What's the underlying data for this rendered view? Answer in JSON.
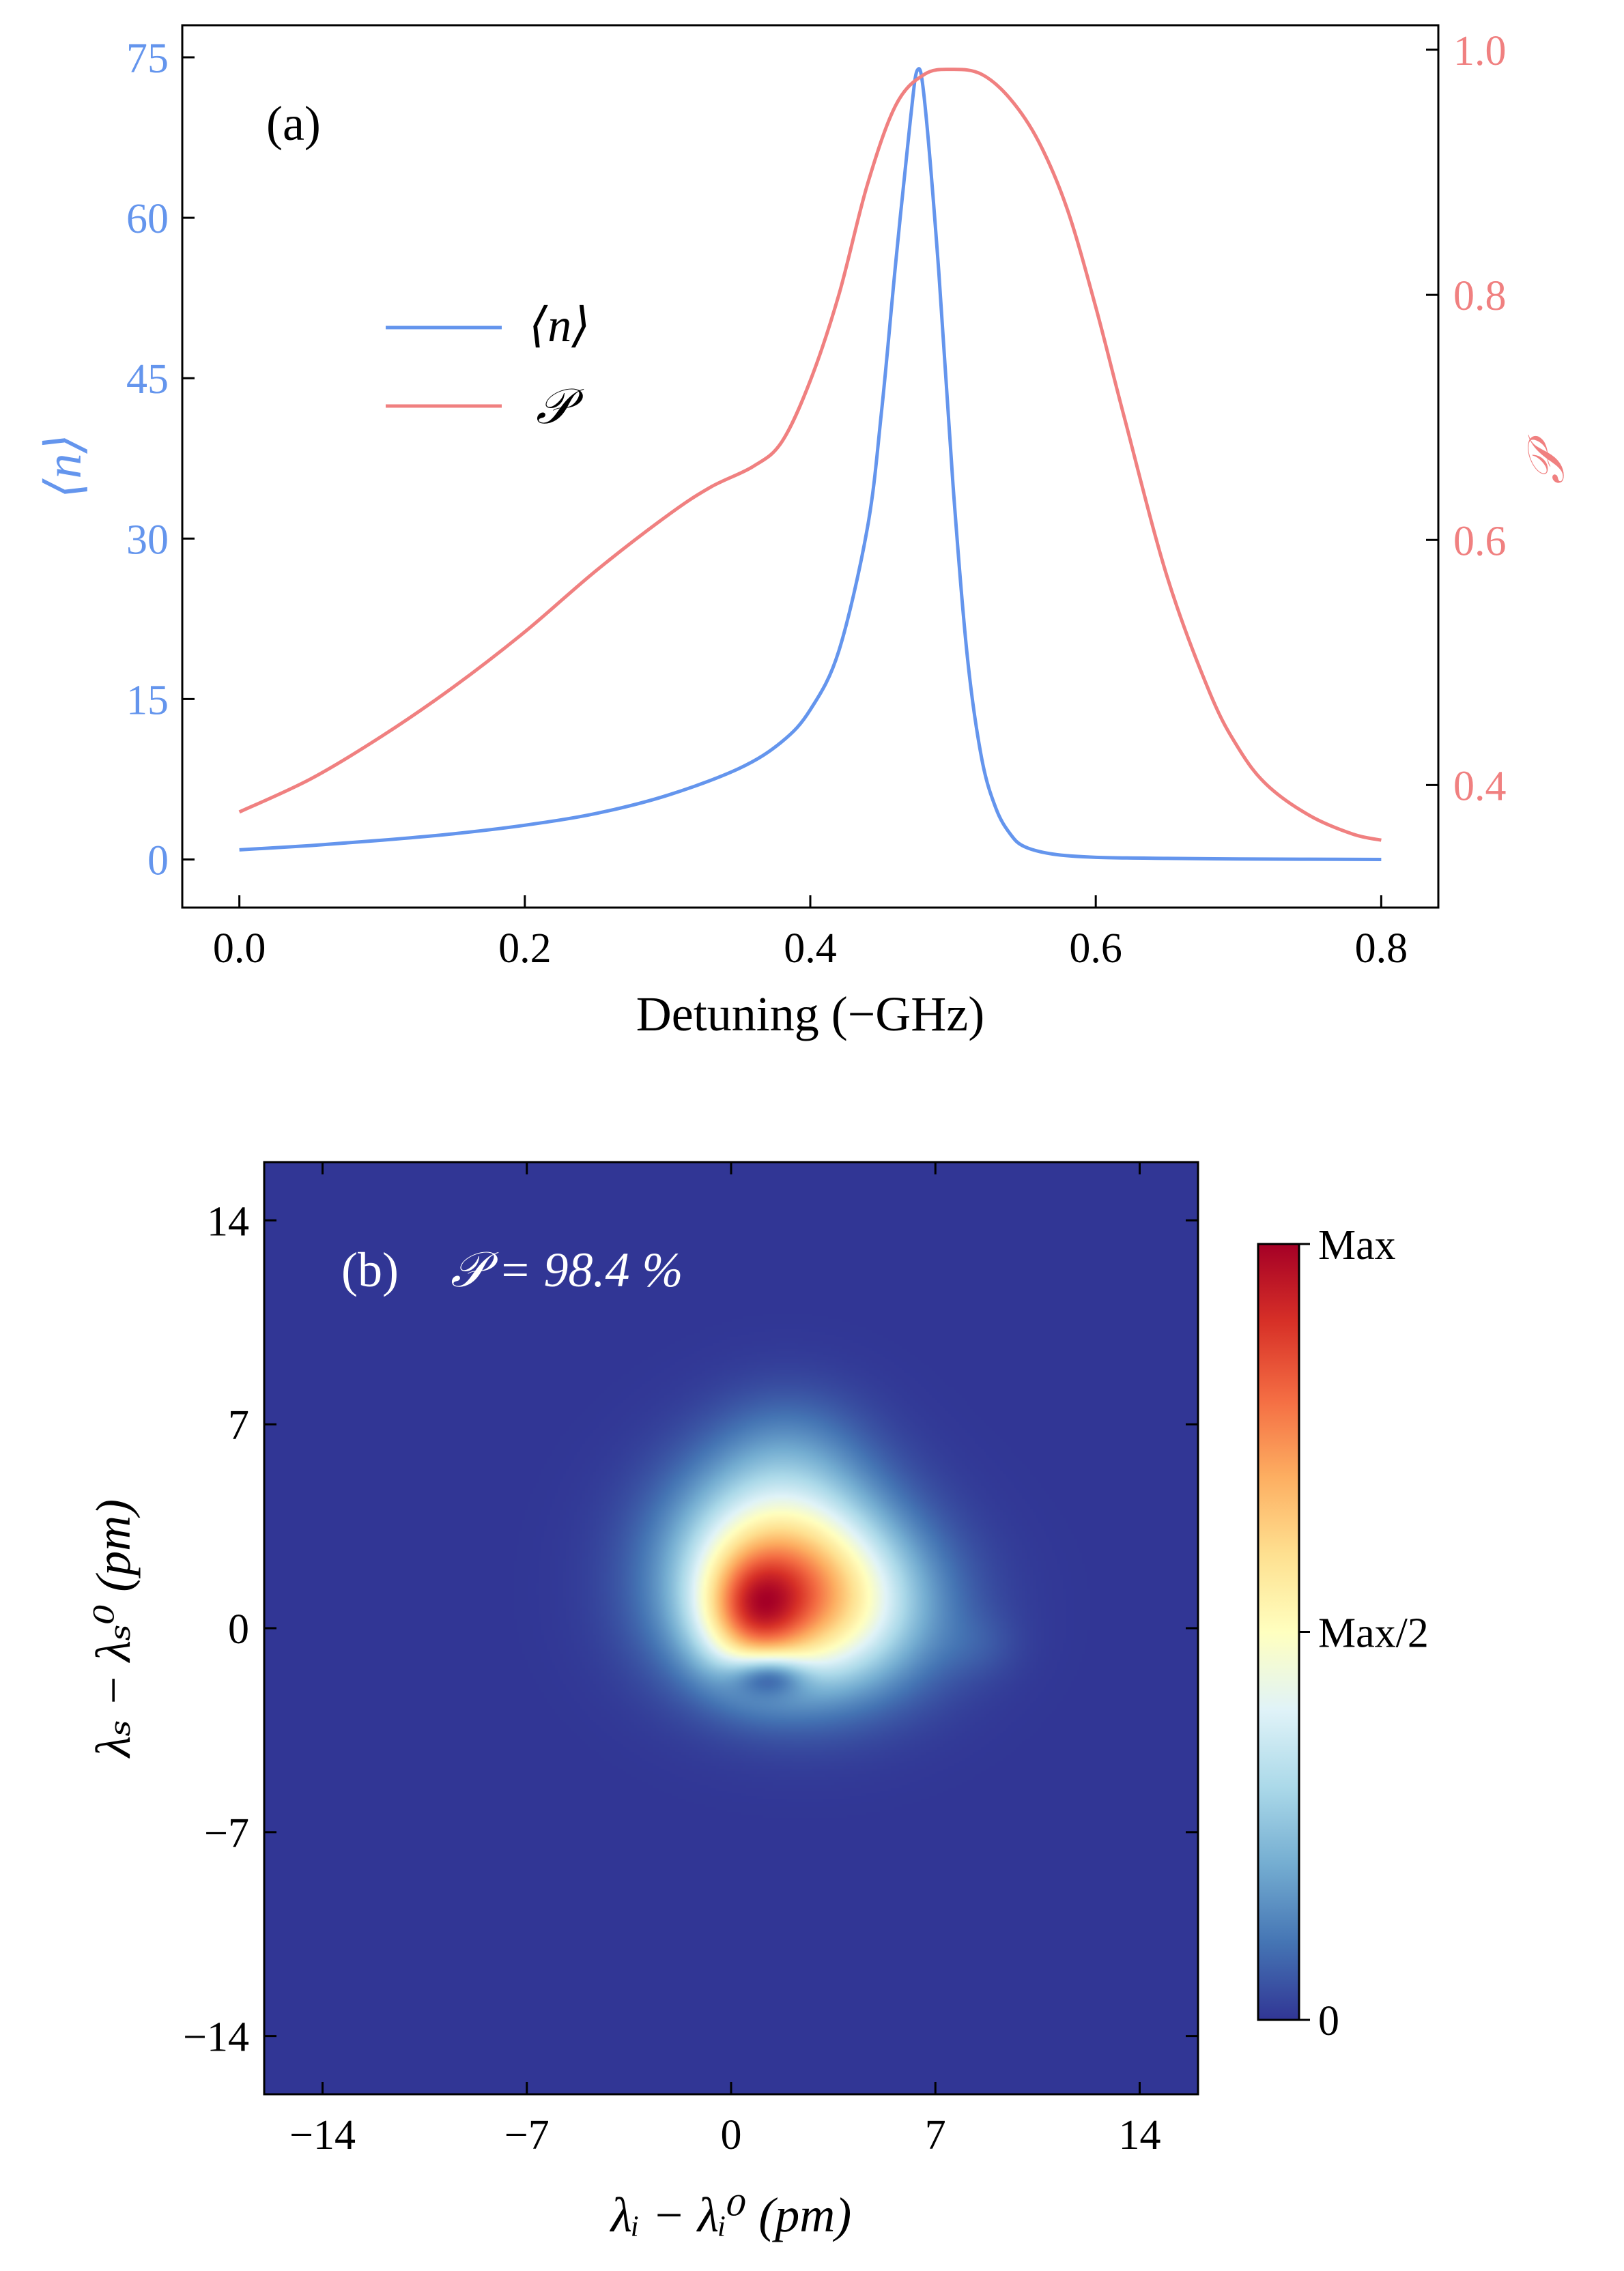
{
  "chart_data": [
    {
      "type": "line",
      "panel_label": "(a)",
      "xlabel": "Detuning (−GHz)",
      "ylabel_left": "⟨n⟩",
      "ylabel_right": "𝒫",
      "xlim": [
        -0.04,
        0.84
      ],
      "ylim_left": [
        -4.5,
        78
      ],
      "ylim_right": [
        0.3,
        1.02
      ],
      "xticks": [
        "0.0",
        "0.2",
        "0.4",
        "0.6",
        "0.8"
      ],
      "yticks_left": [
        "0",
        "15",
        "30",
        "45",
        "60",
        "75"
      ],
      "yticks_right": [
        "0.4",
        "0.6",
        "0.8",
        "1.0"
      ],
      "legend_position": "upper-left",
      "grid": false,
      "series": [
        {
          "name": "⟨n⟩",
          "axis": "left",
          "color": "#6495ED",
          "x": [
            0.0,
            0.05,
            0.1,
            0.15,
            0.2,
            0.25,
            0.3,
            0.35,
            0.38,
            0.4,
            0.42,
            0.44,
            0.45,
            0.46,
            0.47,
            0.475,
            0.48,
            0.49,
            0.5,
            0.51,
            0.52,
            0.53,
            0.54,
            0.55,
            0.57,
            0.6,
            0.65,
            0.7,
            0.75,
            0.8
          ],
          "y": [
            0.9,
            1.3,
            1.8,
            2.4,
            3.2,
            4.3,
            6.0,
            8.5,
            11.0,
            14.0,
            19.5,
            31.0,
            42.0,
            56.0,
            69.0,
            73.8,
            71.0,
            55.0,
            35.0,
            19.0,
            9.5,
            4.8,
            2.4,
            1.2,
            0.5,
            0.2,
            0.1,
            0.05,
            0.02,
            0.0
          ]
        },
        {
          "name": "𝒫",
          "axis": "right",
          "color": "#F08080",
          "x": [
            0.0,
            0.05,
            0.1,
            0.15,
            0.2,
            0.25,
            0.3,
            0.33,
            0.36,
            0.38,
            0.4,
            0.42,
            0.44,
            0.46,
            0.48,
            0.5,
            0.52,
            0.54,
            0.56,
            0.58,
            0.6,
            0.62,
            0.65,
            0.68,
            0.7,
            0.72,
            0.75,
            0.78,
            0.8
          ],
          "y": [
            0.378,
            0.405,
            0.44,
            0.48,
            0.525,
            0.575,
            0.62,
            0.643,
            0.66,
            0.68,
            0.73,
            0.8,
            0.89,
            0.955,
            0.98,
            0.984,
            0.98,
            0.96,
            0.925,
            0.87,
            0.79,
            0.7,
            0.57,
            0.475,
            0.43,
            0.4,
            0.375,
            0.36,
            0.355
          ]
        }
      ]
    },
    {
      "type": "heatmap",
      "panel_label": "(b)",
      "annotation": "𝒫 = 98.4 %",
      "xlabel": "λᵢ − λᵢ⁰ (pm)",
      "ylabel": "λₛ − λₛ⁰ (pm)",
      "xlim": [
        -16,
        16
      ],
      "ylim": [
        -16,
        16
      ],
      "xticks": [
        "−14",
        "−7",
        "0",
        "7",
        "14"
      ],
      "yticks": [
        "−14",
        "−7",
        "0",
        "7",
        "14"
      ],
      "colormap": "RdYlBu_r",
      "colorbar_ticks": [
        "0",
        "Max/2",
        "Max"
      ],
      "peak": {
        "x": 2.5,
        "y": 0.7
      },
      "components": [
        {
          "x": 2.5,
          "y": 0.7,
          "sx": 2.7,
          "sy": 2.0,
          "amplitude": 1.0
        },
        {
          "x": 0.7,
          "y": 0.5,
          "sx": 1.2,
          "sy": 1.4,
          "amplitude": 0.55
        },
        {
          "x": 1.5,
          "y": 3.2,
          "sx": 2.4,
          "sy": 2.0,
          "amplitude": 0.55
        },
        {
          "x": 2.0,
          "y": 6.2,
          "sx": 1.8,
          "sy": 1.5,
          "amplitude": 0.12
        },
        {
          "x": 1.3,
          "y": -1.6,
          "sx": 0.9,
          "sy": 0.5,
          "amplitude": -0.45
        },
        {
          "x": 8.5,
          "y": -0.6,
          "sx": 1.0,
          "sy": 0.8,
          "amplitude": 0.05
        }
      ]
    }
  ],
  "colors": {
    "left_axis": "#6495ED",
    "right_axis": "#F08080",
    "heatmap_low": "#313695",
    "heatmap_high": "#A50026",
    "panel_b_annotation": "#ffffff"
  }
}
